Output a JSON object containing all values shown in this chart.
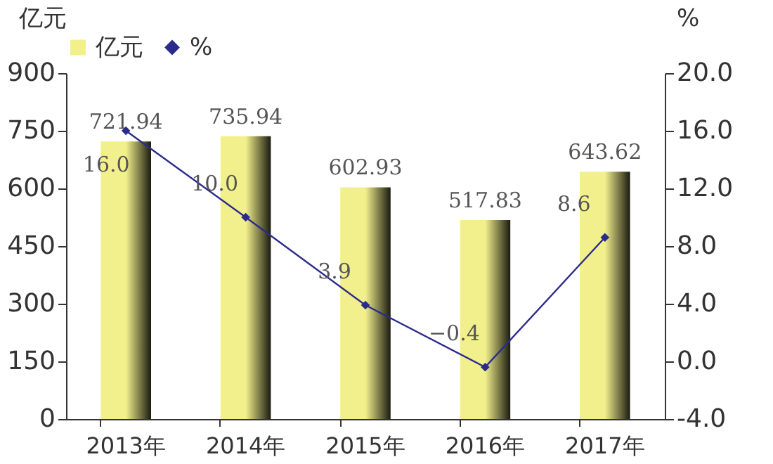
{
  "chart_data": {
    "type": "bar",
    "ylabel": "亿元",
    "y2label": "%",
    "categories": [
      "2013年",
      "2014年",
      "2015年",
      "2016年",
      "2017年"
    ],
    "series": [
      {
        "name": "亿元",
        "type": "bar",
        "color": "#f2f08c",
        "values": [
          721.94,
          735.94,
          602.93,
          517.83,
          643.62
        ],
        "value_labels": [
          "721.94",
          "735.94",
          "602.93",
          "517.83",
          "643.62"
        ]
      },
      {
        "name": "%",
        "type": "line",
        "axis": "y2",
        "color": "#2b2b8c",
        "marker": "diamond",
        "values": [
          16.0,
          10.0,
          3.9,
          -0.4,
          8.6
        ],
        "value_labels": [
          "16.0",
          "10.0",
          "3.9",
          "−0.4",
          "8.6"
        ]
      }
    ],
    "ylim": [
      0,
      900
    ],
    "yticks": [
      0,
      150,
      300,
      450,
      600,
      750,
      900
    ],
    "y2lim": [
      -4,
      20
    ],
    "y2ticks": [
      {
        "value": -4,
        "label": "-4.0"
      },
      {
        "value": 0,
        "label": "0.0"
      },
      {
        "value": 4,
        "label": "4.0"
      },
      {
        "value": 8,
        "label": "8.0"
      },
      {
        "value": 12,
        "label": "12.0"
      },
      {
        "value": 16,
        "label": "16.0"
      },
      {
        "value": 20,
        "label": "20.0"
      }
    ],
    "grid": false,
    "legend": "top"
  }
}
